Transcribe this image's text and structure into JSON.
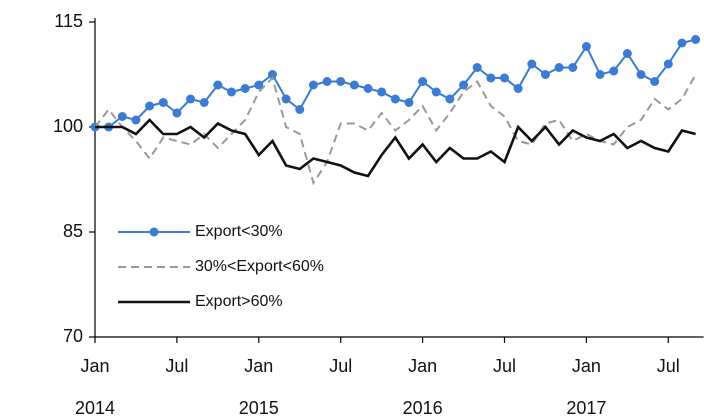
{
  "chart_data": {
    "type": "line",
    "categories": [
      "Jan",
      null,
      null,
      null,
      null,
      null,
      "Jul",
      null,
      null,
      null,
      null,
      null,
      "Jan",
      null,
      null,
      null,
      null,
      null,
      "Jul",
      null,
      null,
      null,
      null,
      null,
      "Jan",
      null,
      null,
      null,
      null,
      null,
      "Jul",
      null,
      null,
      null,
      null,
      null,
      "Jan",
      null,
      null,
      null,
      null,
      null,
      "Jul",
      null,
      null
    ],
    "years": [
      "2014",
      "2015",
      "2016",
      "2017"
    ],
    "ylim": [
      70,
      115
    ],
    "yticks": [
      70,
      85,
      100,
      115
    ],
    "series": [
      {
        "name": "Export<30%",
        "color": "#3a7bd5",
        "style": "solid-marker",
        "values": [
          100,
          100,
          101.5,
          101,
          103,
          103.5,
          102,
          104,
          103.5,
          106,
          105,
          105.5,
          106,
          107.5,
          104,
          102.5,
          106,
          106.5,
          106.5,
          106,
          105.5,
          105,
          104,
          103.5,
          106.5,
          105,
          104,
          106,
          108.5,
          107,
          107,
          105.5,
          109,
          107.5,
          108.5,
          108.5,
          111.5,
          107.5,
          108,
          110.5,
          107.5,
          106.5,
          109,
          112,
          112.5
        ]
      },
      {
        "name": "30%<Export<60%",
        "color": "#999999",
        "style": "dashed",
        "values": [
          100,
          102.5,
          100,
          98,
          95.5,
          98.5,
          98,
          97.5,
          99,
          97,
          99,
          101,
          105,
          107,
          100,
          99,
          92,
          95,
          100.5,
          100.5,
          99.5,
          102,
          99.5,
          101,
          103,
          99.5,
          102,
          105,
          106.5,
          103,
          101.5,
          98,
          97.5,
          100.5,
          101,
          98,
          99,
          98,
          97.5,
          100,
          101,
          104,
          102.5,
          104,
          107.5
        ]
      },
      {
        "name": "Export>60%",
        "color": "#111111",
        "style": "solid",
        "values": [
          100,
          100,
          100,
          99,
          101,
          99,
          99,
          100,
          98.5,
          100.5,
          99.5,
          99,
          96,
          98,
          94.5,
          94,
          95.5,
          95,
          94.5,
          93.5,
          93,
          96,
          98.5,
          95.5,
          97.5,
          95,
          97,
          95.5,
          95.5,
          96.5,
          95,
          100,
          98,
          100,
          97.5,
          99.5,
          98.5,
          98,
          99,
          97,
          98,
          97,
          96.5,
          99.5,
          99
        ]
      }
    ]
  }
}
